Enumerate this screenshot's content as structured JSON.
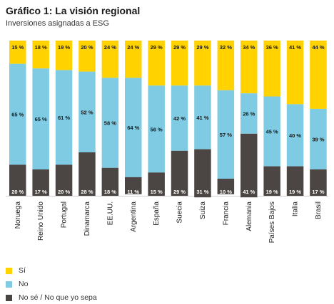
{
  "header": {
    "title": "Gráfico 1: La visión regional",
    "subtitle": "Inversiones asignadas a ESG"
  },
  "colors": {
    "si": "#ffd200",
    "no": "#7ecbe3",
    "nose": "#4b4643"
  },
  "chart_data": {
    "type": "bar",
    "stacked": true,
    "percent_suffix": " %",
    "categories": [
      "Noruega",
      "Reino Unido",
      "Portugal",
      "Dinamarca",
      "EE.UU.",
      "Argentina",
      "España",
      "Suecia",
      "Suiza",
      "Francia",
      "Alemania",
      "Países Bajos",
      "Italia",
      "Brasil"
    ],
    "series": [
      {
        "name": "Sí",
        "key": "si",
        "values": [
          15,
          18,
          19,
          20,
          24,
          24,
          29,
          29,
          29,
          32,
          34,
          36,
          41,
          44
        ]
      },
      {
        "name": "No",
        "key": "no",
        "values": [
          65,
          65,
          61,
          52,
          58,
          64,
          56,
          42,
          41,
          57,
          26,
          45,
          40,
          39
        ]
      },
      {
        "name": "No sé / No que yo sepa",
        "key": "nose",
        "values": [
          20,
          17,
          20,
          28,
          18,
          11,
          15,
          29,
          31,
          10,
          41,
          19,
          19,
          17
        ]
      }
    ],
    "ylim": [
      0,
      100
    ],
    "legend_position": "bottom-left",
    "grid": false
  }
}
